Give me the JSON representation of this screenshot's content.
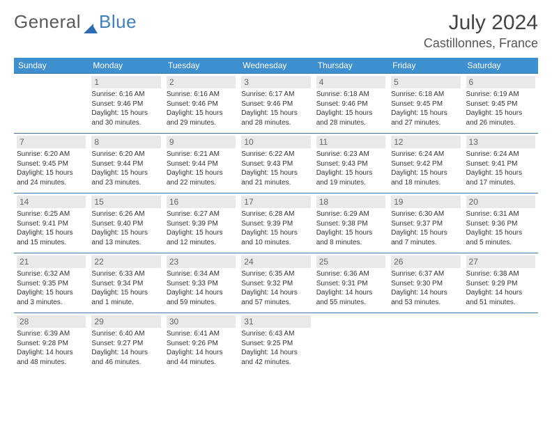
{
  "brand": {
    "part1": "General",
    "part2": "Blue"
  },
  "title": "July 2024",
  "location": "Castillonnes, France",
  "colors": {
    "header_bg": "#3d8fcf",
    "header_fg": "#ffffff",
    "row_border": "#3d78a5",
    "daynum_bg": "#e9e9e9",
    "brand_blue": "#3d7fbf"
  },
  "weekdays": [
    "Sunday",
    "Monday",
    "Tuesday",
    "Wednesday",
    "Thursday",
    "Friday",
    "Saturday"
  ],
  "weeks": [
    [
      null,
      {
        "n": "1",
        "sr": "6:16 AM",
        "ss": "9:46 PM",
        "dl": "15 hours and 30 minutes."
      },
      {
        "n": "2",
        "sr": "6:16 AM",
        "ss": "9:46 PM",
        "dl": "15 hours and 29 minutes."
      },
      {
        "n": "3",
        "sr": "6:17 AM",
        "ss": "9:46 PM",
        "dl": "15 hours and 28 minutes."
      },
      {
        "n": "4",
        "sr": "6:18 AM",
        "ss": "9:46 PM",
        "dl": "15 hours and 28 minutes."
      },
      {
        "n": "5",
        "sr": "6:18 AM",
        "ss": "9:45 PM",
        "dl": "15 hours and 27 minutes."
      },
      {
        "n": "6",
        "sr": "6:19 AM",
        "ss": "9:45 PM",
        "dl": "15 hours and 26 minutes."
      }
    ],
    [
      {
        "n": "7",
        "sr": "6:20 AM",
        "ss": "9:45 PM",
        "dl": "15 hours and 24 minutes."
      },
      {
        "n": "8",
        "sr": "6:20 AM",
        "ss": "9:44 PM",
        "dl": "15 hours and 23 minutes."
      },
      {
        "n": "9",
        "sr": "6:21 AM",
        "ss": "9:44 PM",
        "dl": "15 hours and 22 minutes."
      },
      {
        "n": "10",
        "sr": "6:22 AM",
        "ss": "9:43 PM",
        "dl": "15 hours and 21 minutes."
      },
      {
        "n": "11",
        "sr": "6:23 AM",
        "ss": "9:43 PM",
        "dl": "15 hours and 19 minutes."
      },
      {
        "n": "12",
        "sr": "6:24 AM",
        "ss": "9:42 PM",
        "dl": "15 hours and 18 minutes."
      },
      {
        "n": "13",
        "sr": "6:24 AM",
        "ss": "9:41 PM",
        "dl": "15 hours and 17 minutes."
      }
    ],
    [
      {
        "n": "14",
        "sr": "6:25 AM",
        "ss": "9:41 PM",
        "dl": "15 hours and 15 minutes."
      },
      {
        "n": "15",
        "sr": "6:26 AM",
        "ss": "9:40 PM",
        "dl": "15 hours and 13 minutes."
      },
      {
        "n": "16",
        "sr": "6:27 AM",
        "ss": "9:39 PM",
        "dl": "15 hours and 12 minutes."
      },
      {
        "n": "17",
        "sr": "6:28 AM",
        "ss": "9:39 PM",
        "dl": "15 hours and 10 minutes."
      },
      {
        "n": "18",
        "sr": "6:29 AM",
        "ss": "9:38 PM",
        "dl": "15 hours and 8 minutes."
      },
      {
        "n": "19",
        "sr": "6:30 AM",
        "ss": "9:37 PM",
        "dl": "15 hours and 7 minutes."
      },
      {
        "n": "20",
        "sr": "6:31 AM",
        "ss": "9:36 PM",
        "dl": "15 hours and 5 minutes."
      }
    ],
    [
      {
        "n": "21",
        "sr": "6:32 AM",
        "ss": "9:35 PM",
        "dl": "15 hours and 3 minutes."
      },
      {
        "n": "22",
        "sr": "6:33 AM",
        "ss": "9:34 PM",
        "dl": "15 hours and 1 minute."
      },
      {
        "n": "23",
        "sr": "6:34 AM",
        "ss": "9:33 PM",
        "dl": "14 hours and 59 minutes."
      },
      {
        "n": "24",
        "sr": "6:35 AM",
        "ss": "9:32 PM",
        "dl": "14 hours and 57 minutes."
      },
      {
        "n": "25",
        "sr": "6:36 AM",
        "ss": "9:31 PM",
        "dl": "14 hours and 55 minutes."
      },
      {
        "n": "26",
        "sr": "6:37 AM",
        "ss": "9:30 PM",
        "dl": "14 hours and 53 minutes."
      },
      {
        "n": "27",
        "sr": "6:38 AM",
        "ss": "9:29 PM",
        "dl": "14 hours and 51 minutes."
      }
    ],
    [
      {
        "n": "28",
        "sr": "6:39 AM",
        "ss": "9:28 PM",
        "dl": "14 hours and 48 minutes."
      },
      {
        "n": "29",
        "sr": "6:40 AM",
        "ss": "9:27 PM",
        "dl": "14 hours and 46 minutes."
      },
      {
        "n": "30",
        "sr": "6:41 AM",
        "ss": "9:26 PM",
        "dl": "14 hours and 44 minutes."
      },
      {
        "n": "31",
        "sr": "6:43 AM",
        "ss": "9:25 PM",
        "dl": "14 hours and 42 minutes."
      },
      null,
      null,
      null
    ]
  ],
  "labels": {
    "sunrise": "Sunrise:",
    "sunset": "Sunset:",
    "daylight": "Daylight:"
  }
}
